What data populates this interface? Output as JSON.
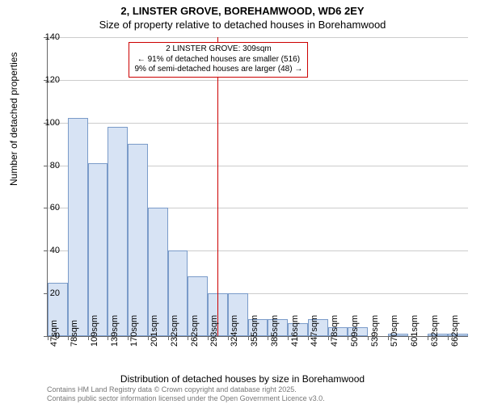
{
  "title_line1": "2, LINSTER GROVE, BOREHAMWOOD, WD6 2EY",
  "title_line2": "Size of property relative to detached houses in Borehamwood",
  "y_axis": {
    "label": "Number of detached properties",
    "min": 0,
    "max": 140,
    "tick_step": 20,
    "ticks": [
      0,
      20,
      40,
      60,
      80,
      100,
      120,
      140
    ]
  },
  "x_axis": {
    "label": "Distribution of detached houses by size in Borehamwood",
    "tick_labels": [
      "47sqm",
      "78sqm",
      "109sqm",
      "139sqm",
      "170sqm",
      "201sqm",
      "232sqm",
      "262sqm",
      "293sqm",
      "324sqm",
      "355sqm",
      "385sqm",
      "416sqm",
      "447sqm",
      "478sqm",
      "509sqm",
      "539sqm",
      "570sqm",
      "601sqm",
      "632sqm",
      "662sqm"
    ]
  },
  "histogram": {
    "type": "histogram",
    "bars": [
      25,
      102,
      81,
      98,
      90,
      60,
      40,
      28,
      20,
      20,
      8,
      8,
      6,
      8,
      4,
      4,
      0,
      1,
      0,
      1,
      1
    ],
    "bar_fill": "#d7e3f4",
    "bar_stroke": "#7a9bc9"
  },
  "reference": {
    "value_sqm": 309,
    "line_color": "#cc0000",
    "annotation": {
      "line1": "2 LINSTER GROVE: 309sqm",
      "line2": "← 91% of detached houses are smaller (516)",
      "line3": "9% of semi-detached houses are larger (48) →"
    }
  },
  "footer": {
    "line1": "Contains HM Land Registry data © Crown copyright and database right 2025.",
    "line2": "Contains public sector information licensed under the Open Government Licence v3.0."
  },
  "style": {
    "background_color": "#ffffff",
    "grid_color": "#cccccc",
    "axis_color": "#666666",
    "title_fontsize": 13,
    "tick_fontsize": 11,
    "label_fontsize": 12,
    "annotation_fontsize": 10,
    "footer_fontsize": 9,
    "footer_color": "#777777"
  }
}
